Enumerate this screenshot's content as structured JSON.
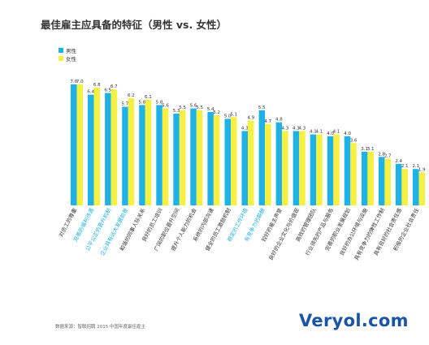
{
  "chart_data": {
    "type": "bar",
    "title": "最佳雇主应具备的特征（男性 vs. 女性）",
    "colors": {
      "male": "#1fb2e6",
      "female": "#f6f041",
      "highlight_label": "#1fb2e6",
      "label": "#333333"
    },
    "series": [
      {
        "name": "男性",
        "values": [
          7.0,
          6.4,
          6.5,
          5.7,
          5.8,
          5.8,
          5.3,
          5.6,
          5.4,
          5.0,
          4.3,
          5.5,
          4.8,
          4.3,
          4.1,
          4.0,
          4.0,
          3.1,
          2.8,
          2.4,
          2.1
        ]
      },
      {
        "name": "女性",
        "values": [
          7.0,
          6.8,
          6.7,
          6.2,
          6.1,
          5.6,
          5.5,
          5.5,
          5.2,
          5.1,
          4.9,
          4.7,
          4.3,
          4.3,
          4.1,
          4.1,
          3.6,
          3.1,
          2.7,
          2.1,
          1.9
        ]
      }
    ],
    "categories": [
      "对员工的尊重",
      "完善的福利待遇",
      "公平公正的晋升机制",
      "企业具有远大发展前景",
      "和谐的同事人际关系",
      "良好的员工培训",
      "广阔的职位晋升空间",
      "提升个人能力的机会",
      "系统的内部沟通",
      "健全的员工激励机制",
      "稳定的工作环境",
      "有竞争力的薪酬",
      "较好的雇主声誉",
      "良好的企业文化与价值观",
      "高效的管理团队",
      "行业领先的产品与服务",
      "完善的职业发展规划",
      "良好的办公环境与设施",
      "具有竞争力的弹性工作制",
      "具有良好的社会责任感",
      "积极的企业社会责任"
    ],
    "highlighted_categories": [
      1,
      2,
      3,
      10,
      11
    ],
    "ylim": [
      0,
      8
    ],
    "legend_position": "top-left",
    "grid": false
  },
  "source_note": "数据来源：智联招聘 2015 中国年度最佳雇主",
  "watermark": "Veryol.com"
}
